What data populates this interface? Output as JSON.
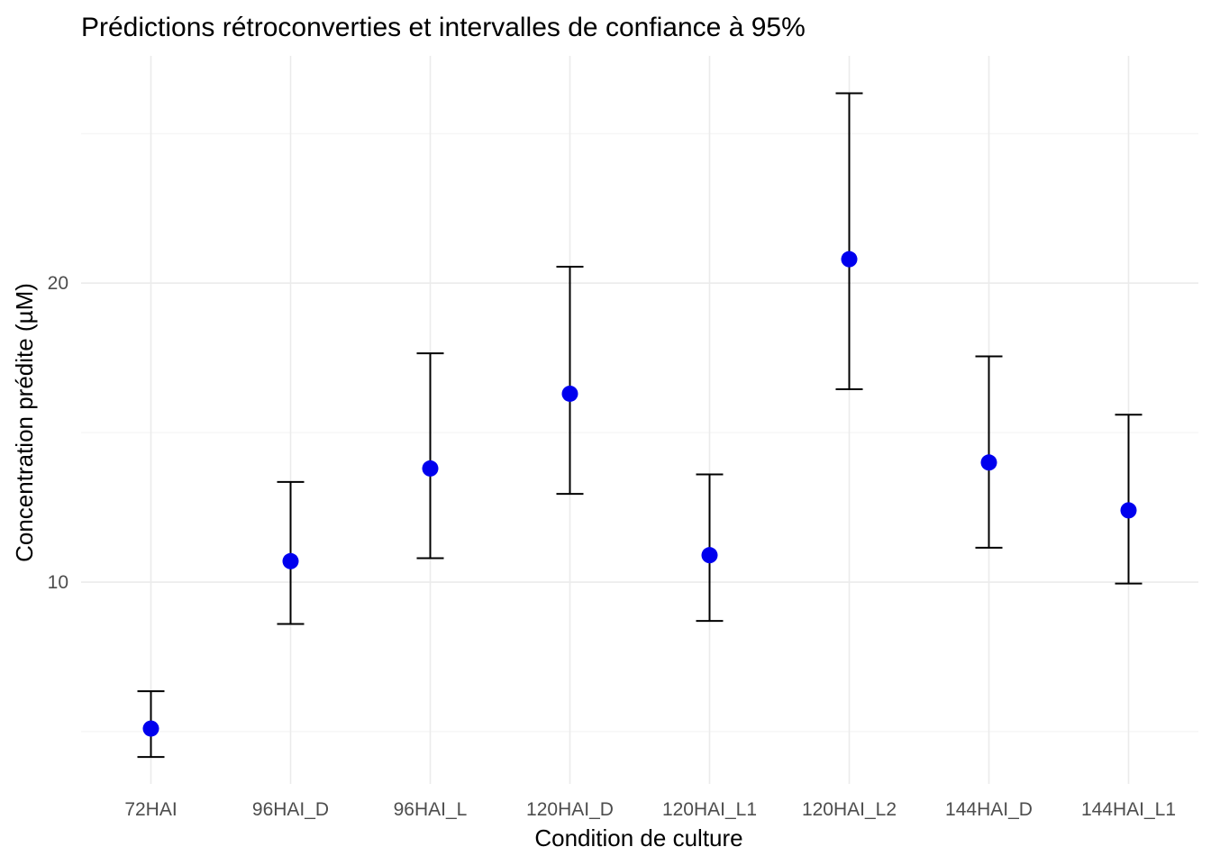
{
  "chart_data": {
    "type": "scatter",
    "title": "Prédictions rétroconverties et intervalles de confiance à 95%",
    "xlabel": "Condition de culture",
    "ylabel": "Concentration prédite (µM)",
    "categories": [
      "72HAI",
      "96HAI_D",
      "96HAI_L",
      "120HAI_D",
      "120HAI_L1",
      "120HAI_L2",
      "144HAI_D",
      "144HAI_L1"
    ],
    "values": [
      5.1,
      10.7,
      13.8,
      16.3,
      10.9,
      20.8,
      14.0,
      12.4
    ],
    "lower": [
      4.15,
      8.6,
      10.8,
      12.95,
      8.7,
      16.45,
      11.15,
      9.95
    ],
    "upper": [
      6.35,
      13.35,
      17.65,
      20.55,
      13.6,
      26.35,
      17.55,
      15.6
    ],
    "yticks": [
      10,
      20
    ],
    "ylim": [
      3.25,
      27.6
    ],
    "point_color": "#0000ee",
    "errorbar_color": "#000000",
    "grid": true
  }
}
